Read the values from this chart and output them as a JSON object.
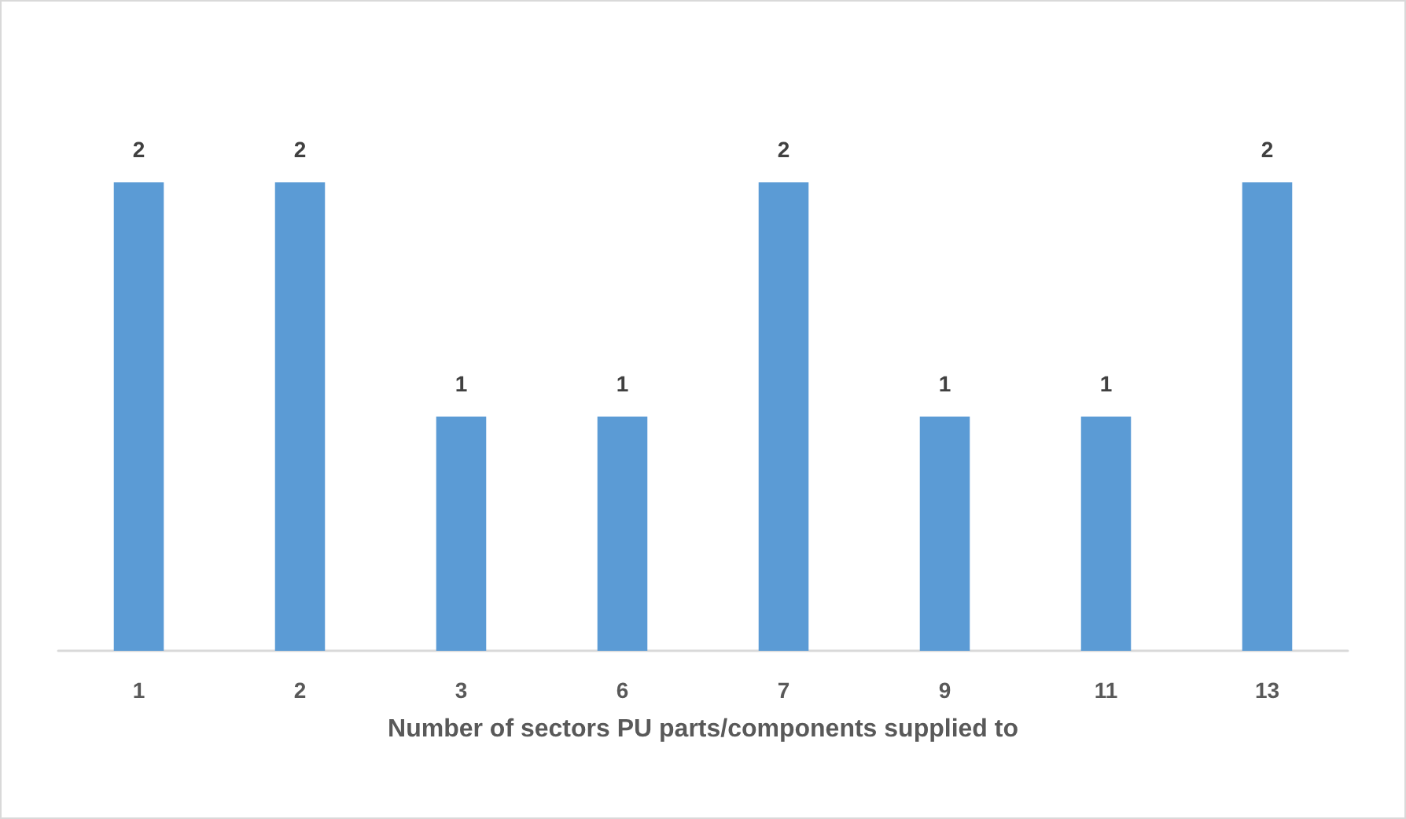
{
  "chart_data": {
    "type": "bar",
    "xlabel": "Number of sectors PU parts/components supplied to",
    "categories": [
      "1",
      "2",
      "3",
      "6",
      "7",
      "9",
      "11",
      "13"
    ],
    "values": [
      2,
      2,
      1,
      1,
      2,
      1,
      1,
      2
    ],
    "color": "#5b9bd5",
    "data_labels": true
  }
}
